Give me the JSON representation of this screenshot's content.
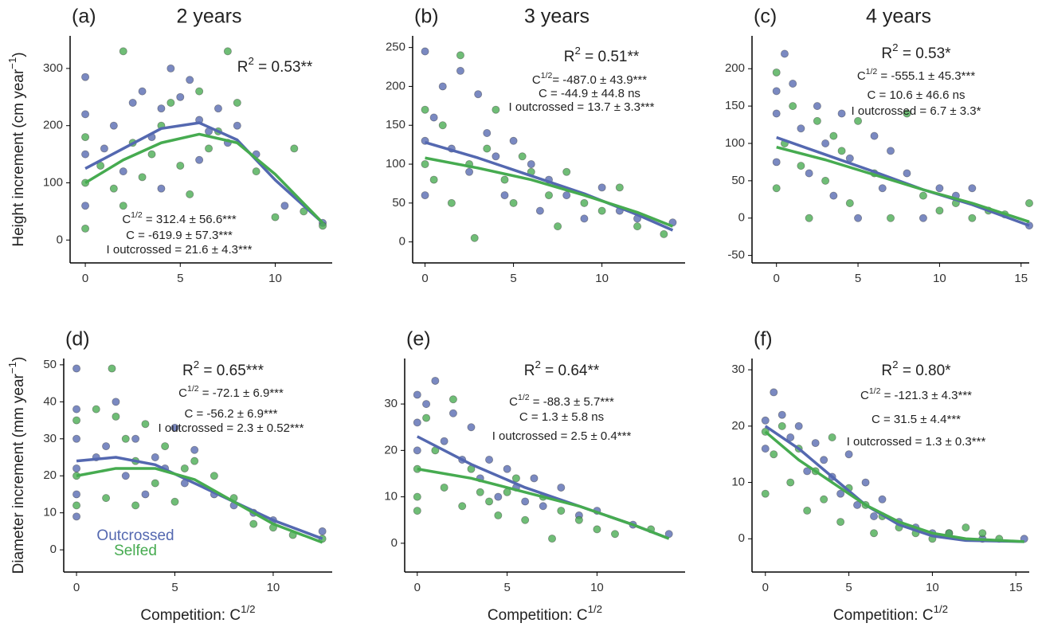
{
  "chart_data": [
    {
      "type": "scatter",
      "title": "(a)",
      "subtitle": "2 years",
      "ylabel": [
        "Height increment  (cm year",
        "−1",
        ")"
      ],
      "xlim": [
        -0.8,
        13.0
      ],
      "ylim": [
        -40,
        357
      ],
      "xticks": [
        0,
        5,
        10
      ],
      "yticks": [
        0,
        100,
        200,
        300
      ],
      "annotations": [
        [
          "R",
          "2",
          " = 0.53**"
        ],
        [
          "C",
          "1/2",
          " = 312.4 ± 56.6***"
        ],
        [
          "C = -619.9 ± 57.3***"
        ],
        [
          "I outcrossed = 21.6 ± 4.3***"
        ]
      ],
      "series": [
        {
          "name": "Outcrossed",
          "color": "#5468b0",
          "x": [
            0,
            0,
            0,
            0,
            1,
            1.5,
            2,
            2.5,
            3,
            3.5,
            4,
            4.5,
            5,
            5.5,
            6,
            6.5,
            7,
            7.5,
            8,
            9,
            10.5,
            12.5,
            4,
            6
          ],
          "values": [
            285,
            220,
            150,
            60,
            160,
            200,
            120,
            240,
            260,
            180,
            230,
            300,
            250,
            280,
            210,
            190,
            230,
            170,
            200,
            150,
            60,
            30,
            90,
            140
          ],
          "fit": {
            "x": [
              0,
              2,
              4,
              6,
              8,
              10,
              12.5
            ],
            "values": [
              125,
              160,
              195,
              205,
              175,
              105,
              30
            ]
          }
        },
        {
          "name": "Selfed",
          "color": "#46ab50",
          "x": [
            0,
            0,
            0,
            0.8,
            1.5,
            2,
            2.5,
            3,
            3.5,
            4,
            5,
            5.5,
            6,
            6.5,
            7,
            7.5,
            8,
            9,
            10,
            11,
            11.5,
            12.5,
            4.5,
            2
          ],
          "values": [
            100,
            180,
            20,
            130,
            90,
            330,
            170,
            110,
            150,
            200,
            130,
            80,
            260,
            160,
            190,
            330,
            240,
            120,
            40,
            160,
            50,
            25,
            240,
            60
          ],
          "fit": {
            "x": [
              0,
              2,
              4,
              6,
              8,
              10,
              12.5
            ],
            "values": [
              100,
              140,
              170,
              185,
              170,
              115,
              30
            ]
          }
        }
      ]
    },
    {
      "type": "scatter",
      "title": "(b)",
      "subtitle": "3 years",
      "xlim": [
        -0.7,
        14.7
      ],
      "ylim": [
        -27,
        265
      ],
      "xticks": [
        0,
        5,
        10
      ],
      "yticks": [
        0,
        50,
        100,
        150,
        200,
        250
      ],
      "annotations": [
        [
          "R",
          "2",
          " = 0.51**"
        ],
        [
          "C",
          "1/2",
          "= -487.0 ± 43.9***"
        ],
        [
          "C = -44.9 ± 44.8 ns"
        ],
        [
          "I outcrossed = 13.7 ± 3.3***"
        ]
      ],
      "series": [
        {
          "name": "Outcrossed",
          "color": "#5468b0",
          "x": [
            0,
            0,
            0,
            0.5,
            1,
            1.5,
            2,
            2.5,
            3,
            3.5,
            4,
            4.5,
            5,
            6,
            6.5,
            7,
            8,
            9,
            10,
            11,
            12,
            14
          ],
          "values": [
            245,
            130,
            60,
            160,
            200,
            120,
            220,
            90,
            190,
            140,
            110,
            60,
            130,
            100,
            40,
            80,
            60,
            30,
            70,
            40,
            30,
            25
          ],
          "fit": {
            "x": [
              0,
              3,
              6,
              9,
              12,
              14
            ],
            "values": [
              128,
              108,
              85,
              62,
              35,
              15
            ]
          }
        },
        {
          "name": "Selfed",
          "color": "#46ab50",
          "x": [
            0,
            0,
            0.5,
            1,
            1.5,
            2,
            2.5,
            2.8,
            3.5,
            4,
            4.5,
            5,
            5.5,
            6,
            7,
            7.5,
            8,
            9,
            10,
            11,
            12,
            13.5
          ],
          "values": [
            100,
            170,
            80,
            150,
            50,
            240,
            100,
            5,
            120,
            170,
            80,
            50,
            110,
            90,
            60,
            20,
            90,
            50,
            40,
            70,
            20,
            10
          ],
          "fit": {
            "x": [
              0,
              3,
              6,
              9,
              12,
              14
            ],
            "values": [
              108,
              95,
              80,
              60,
              38,
              20
            ]
          }
        }
      ]
    },
    {
      "type": "scatter",
      "title": "(c)",
      "subtitle": "4 years",
      "xlim": [
        -1.5,
        15.5
      ],
      "ylim": [
        -60,
        244
      ],
      "xticks": [
        0,
        5,
        10,
        15
      ],
      "yticks": [
        -50,
        0,
        50,
        100,
        150,
        200
      ],
      "annotations": [
        [
          "R",
          "2",
          " = 0.53*"
        ],
        [
          "C",
          "1/2",
          " = -555.1 ± 45.3***"
        ],
        [
          "C = 10.6 ± 46.6 ns"
        ],
        [
          "I outcrossed = 6.7 ± 3.3*"
        ]
      ],
      "series": [
        {
          "name": "Outcrossed",
          "color": "#5468b0",
          "x": [
            0,
            0,
            0,
            0.5,
            1,
            1.5,
            2,
            2.5,
            3,
            3.5,
            4,
            4.5,
            5,
            6,
            6.5,
            7,
            8,
            9,
            10,
            11,
            12,
            15.5
          ],
          "values": [
            170,
            140,
            75,
            220,
            180,
            120,
            60,
            150,
            100,
            30,
            140,
            80,
            0,
            110,
            40,
            90,
            60,
            0,
            40,
            30,
            40,
            -10
          ],
          "fit": {
            "x": [
              0,
              3,
              6,
              9,
              12,
              15.5
            ],
            "values": [
              108,
              85,
              62,
              38,
              18,
              -10
            ]
          }
        },
        {
          "name": "Selfed",
          "color": "#46ab50",
          "x": [
            0,
            0,
            0.5,
            1,
            1.5,
            2,
            2.5,
            3,
            4,
            4.5,
            5,
            6,
            7,
            8,
            9,
            10,
            11,
            12,
            13,
            14,
            15.5,
            3.5
          ],
          "values": [
            195,
            40,
            100,
            150,
            70,
            0,
            130,
            50,
            90,
            20,
            130,
            60,
            0,
            140,
            30,
            10,
            20,
            0,
            10,
            5,
            20,
            110
          ],
          "fit": {
            "x": [
              0,
              3,
              6,
              9,
              12,
              15.5
            ],
            "values": [
              95,
              78,
              58,
              38,
              20,
              -5
            ]
          }
        }
      ]
    },
    {
      "type": "scatter",
      "title": "(d)",
      "ylabel": [
        "Diameter increment  (mm year",
        "−1",
        ")"
      ],
      "xlabel": [
        "Competition: C",
        "1/2"
      ],
      "legend": "bottom-left",
      "xlim": [
        -0.65,
        13.0
      ],
      "ylim": [
        -6,
        51.7
      ],
      "xticks": [
        0,
        5,
        10
      ],
      "yticks": [
        0,
        10,
        20,
        30,
        40,
        50
      ],
      "annotations": [
        [
          "R",
          "2",
          " = 0.65***"
        ],
        [
          "C",
          "1/2",
          " = -72.1 ± 6.9***"
        ],
        [
          "C = -56.2 ± 6.9***"
        ],
        [
          "I outcrossed = 2.3 ± 0.52***"
        ]
      ],
      "series": [
        {
          "name": "Outcrossed",
          "color": "#5468b0",
          "x": [
            0,
            0,
            0,
            0,
            0,
            0,
            1,
            1.5,
            2,
            2.5,
            3,
            3.5,
            4,
            4.5,
            5,
            5.5,
            6,
            7,
            8,
            9,
            10,
            12.5
          ],
          "values": [
            49,
            38,
            30,
            22,
            15,
            9,
            25,
            28,
            40,
            20,
            30,
            15,
            25,
            22,
            33,
            18,
            27,
            15,
            12,
            10,
            8,
            5
          ],
          "fit": {
            "x": [
              0,
              2,
              4,
              6,
              8,
              10,
              12.5
            ],
            "values": [
              24,
              25,
              23,
              18,
              13,
              8,
              3
            ]
          }
        },
        {
          "name": "Selfed",
          "color": "#46ab50",
          "x": [
            0,
            0,
            0,
            1,
            1.5,
            1.8,
            2,
            2.5,
            3,
            3.5,
            4,
            4.5,
            5,
            5.5,
            6,
            7,
            8,
            9,
            10,
            11,
            12.5,
            3
          ],
          "values": [
            35,
            20,
            12,
            38,
            14,
            49,
            36,
            30,
            12,
            34,
            18,
            28,
            13,
            22,
            24,
            20,
            14,
            7,
            6,
            4,
            3,
            24
          ],
          "fit": {
            "x": [
              0,
              2,
              4,
              6,
              8,
              10,
              12.5
            ],
            "values": [
              20,
              22,
              22,
              19,
              13,
              7,
              2
            ]
          }
        }
      ]
    },
    {
      "type": "scatter",
      "title": "(e)",
      "xlabel": [
        "Competition: C",
        "1/2"
      ],
      "xlim": [
        -0.7,
        14.9
      ],
      "ylim": [
        -6.2,
        39.8
      ],
      "xticks": [
        0,
        5,
        10
      ],
      "yticks": [
        0,
        10,
        20,
        30
      ],
      "annotations": [
        [
          "R",
          "2",
          " = 0.64**"
        ],
        [
          "C",
          "1/2",
          " = -88.3 ± 5.7***"
        ],
        [
          "C = 1.3 ± 5.8 ns"
        ],
        [
          "I outcrossed = 2.5 ± 0.4***"
        ]
      ],
      "series": [
        {
          "name": "Outcrossed",
          "color": "#5468b0",
          "x": [
            0,
            0,
            0,
            0.5,
            1,
            1.5,
            2,
            2.5,
            3,
            3.5,
            4,
            4.5,
            5,
            5.5,
            6,
            6.5,
            7,
            8,
            9,
            10,
            12,
            14
          ],
          "values": [
            32,
            26,
            20,
            30,
            35,
            22,
            28,
            18,
            25,
            14,
            18,
            10,
            16,
            12,
            9,
            14,
            8,
            12,
            6,
            7,
            4,
            2
          ],
          "fit": {
            "x": [
              0,
              3,
              6,
              9,
              12,
              14
            ],
            "values": [
              23,
              17,
              12,
              8,
              4,
              1
            ]
          }
        },
        {
          "name": "Selfed",
          "color": "#46ab50",
          "x": [
            0,
            0,
            0,
            0.5,
            1,
            1.5,
            2,
            2.5,
            3,
            3.5,
            4,
            4.5,
            5,
            5.5,
            6,
            7,
            7.5,
            8,
            9,
            10,
            11,
            13
          ],
          "values": [
            16,
            10,
            7,
            27,
            20,
            12,
            31,
            8,
            16,
            11,
            9,
            6,
            11,
            14,
            5,
            10,
            1,
            7,
            5,
            3,
            2,
            3
          ],
          "fit": {
            "x": [
              0,
              3,
              6,
              9,
              12,
              14
            ],
            "values": [
              16,
              14,
              11,
              8,
              4,
              1
            ]
          }
        }
      ]
    },
    {
      "type": "scatter",
      "title": "(f)",
      "xlabel": [
        "Competition: C",
        "1/2"
      ],
      "xlim": [
        -0.8,
        15.8
      ],
      "ylim": [
        -5.9,
        32
      ],
      "xticks": [
        0,
        5,
        10,
        15
      ],
      "yticks": [
        0,
        10,
        20,
        30
      ],
      "annotations": [
        [
          "R",
          "2",
          " = 0.80*"
        ],
        [
          "C",
          "1/2",
          " = -121.3 ± 4.3***"
        ],
        [
          "C = 31.5 ± 4.4***"
        ],
        [
          "I outcrossed = 1.3 ± 0.3***"
        ]
      ],
      "series": [
        {
          "name": "Outcrossed",
          "color": "#5468b0",
          "x": [
            0,
            0,
            0.5,
            1,
            1.5,
            2,
            2.5,
            3,
            3.5,
            4,
            4.5,
            5,
            5.5,
            6,
            6.5,
            7,
            8,
            9,
            10,
            11,
            13,
            15.5
          ],
          "values": [
            21,
            16,
            26,
            22,
            18,
            20,
            12,
            17,
            14,
            11,
            8,
            15,
            6,
            10,
            4,
            7,
            3,
            2,
            1,
            1,
            0,
            0
          ],
          "fit": {
            "x": [
              0,
              2,
              4,
              6,
              8,
              10,
              12,
              15.5
            ],
            "values": [
              20,
              16,
              11,
              6,
              2.5,
              0.5,
              -0.3,
              -0.5
            ]
          }
        },
        {
          "name": "Selfed",
          "color": "#46ab50",
          "x": [
            0,
            0,
            0.5,
            1,
            1.5,
            2,
            2.5,
            3,
            3.5,
            4,
            4.5,
            5,
            6,
            6.5,
            7,
            8,
            9,
            10,
            11,
            12,
            13,
            14
          ],
          "values": [
            8,
            19,
            15,
            20,
            10,
            16,
            5,
            12,
            7,
            18,
            3,
            9,
            6,
            1,
            4,
            2,
            1,
            0,
            1,
            2,
            1,
            0
          ],
          "fit": {
            "x": [
              0,
              2,
              4,
              6,
              8,
              10,
              12,
              15.5
            ],
            "values": [
              19,
              14,
              10,
              6,
              3,
              1,
              0,
              -0.5
            ]
          }
        }
      ]
    }
  ]
}
